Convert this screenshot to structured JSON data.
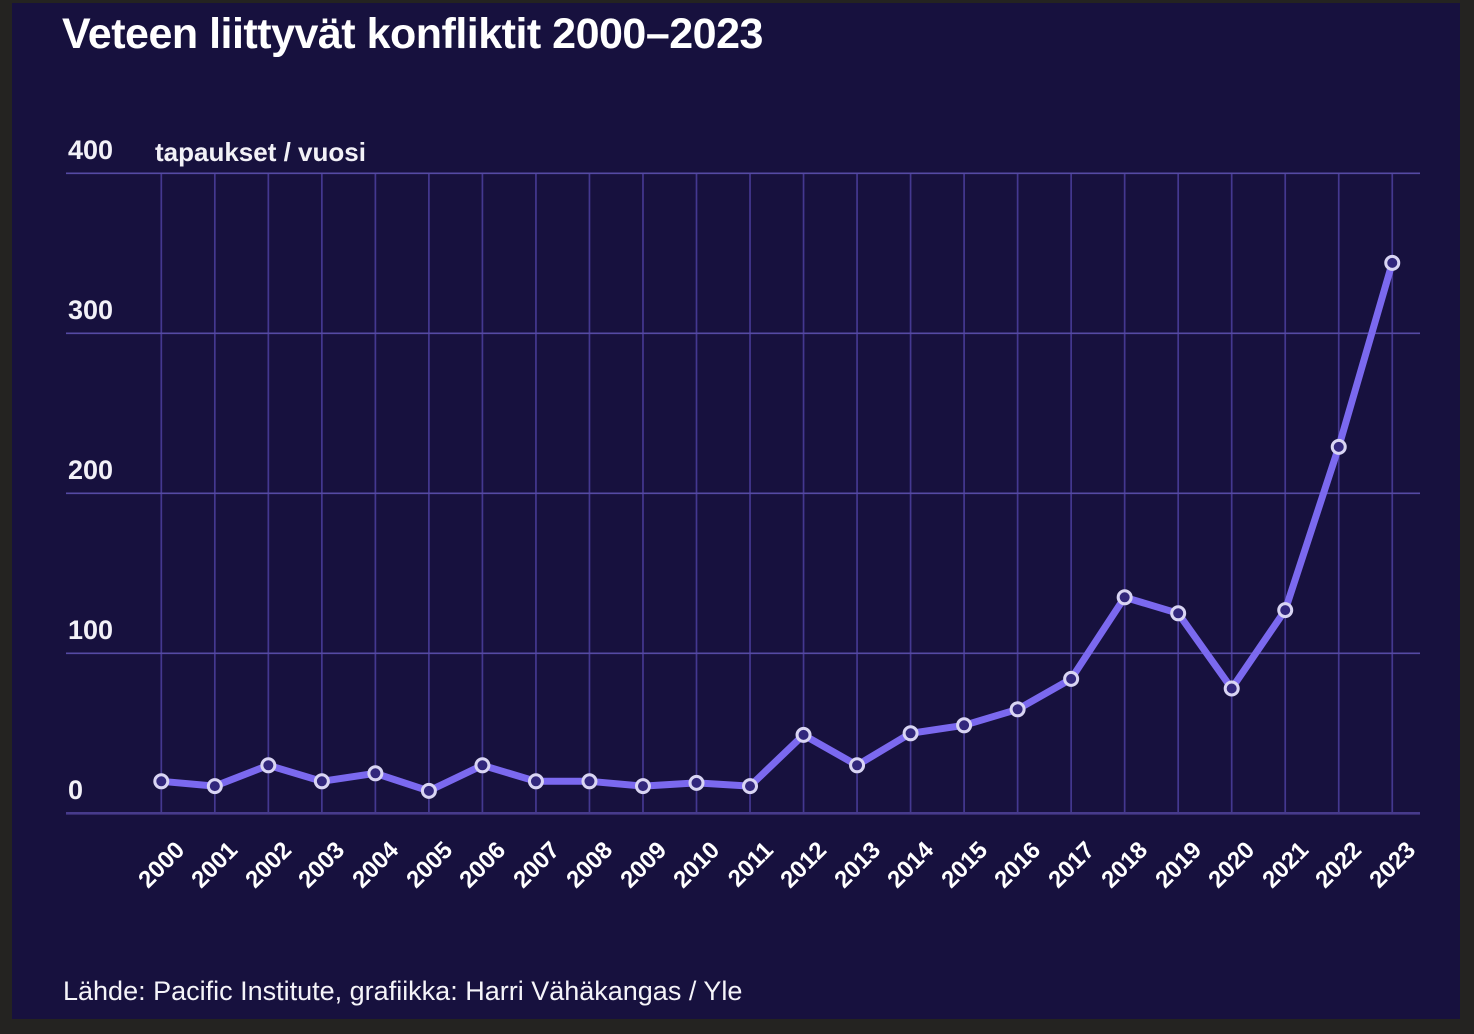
{
  "chart": {
    "title": "Veteen liittyvät konfliktit 2000–2023",
    "unit_label": "tapaukset / vuosi",
    "source": "Lähde: Pacific Institute, grafiikka: Harri Vähäkangas / Yle"
  },
  "chart_data": {
    "type": "line",
    "title": "Veteen liittyvät konfliktit 2000–2023",
    "ylabel": "tapaukset / vuosi",
    "xlabel": "",
    "categories": [
      "2000",
      "2001",
      "2002",
      "2003",
      "2004",
      "2005",
      "2006",
      "2007",
      "2008",
      "2009",
      "2010",
      "2011",
      "2012",
      "2013",
      "2014",
      "2015",
      "2016",
      "2017",
      "2018",
      "2019",
      "2020",
      "2021",
      "2022",
      "2023"
    ],
    "values": [
      20,
      17,
      30,
      20,
      25,
      14,
      30,
      20,
      20,
      17,
      19,
      17,
      49,
      30,
      50,
      55,
      65,
      84,
      135,
      125,
      78,
      127,
      229,
      344
    ],
    "ylim": [
      0,
      400
    ],
    "yticks": [
      0,
      100,
      200,
      300,
      400
    ],
    "grid": true,
    "legend": false
  },
  "colors": {
    "background_outer": "#242321",
    "panel": "#17113e",
    "line": "#7b69ef",
    "grid_vertical": "#443890",
    "grid_horizontal": "#564aa4",
    "axis": "#473b8c",
    "marker_fill": "#32277c",
    "marker_stroke": "#d9d5f3",
    "text": "#ffffff"
  }
}
